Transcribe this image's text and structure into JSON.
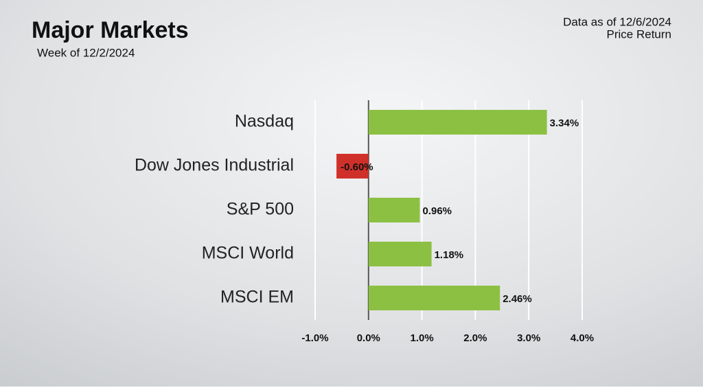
{
  "chart_data": {
    "type": "hbar",
    "title": "Major Markets",
    "subtitle": "Week of 12/2/2024",
    "note": "Data as of 12/6/2024",
    "note2": "Price Return",
    "categories": [
      "Nasdaq",
      "Dow Jones Industrial",
      "S&P 500",
      "MSCI World",
      "MSCI EM"
    ],
    "values": [
      3.34,
      -0.6,
      0.96,
      1.18,
      2.46
    ],
    "value_labels": [
      "3.34%",
      "-0.60%",
      "0.96%",
      "1.18%",
      "2.46%"
    ],
    "positive_color": "#8cc043",
    "negative_color": "#d0302a",
    "xlim": [
      -1,
      4
    ],
    "xticks": [
      {
        "value": -1,
        "label": "-1.0%"
      },
      {
        "value": 0,
        "label": "0.0%"
      },
      {
        "value": 1,
        "label": "1.0%"
      },
      {
        "value": 2,
        "label": "2.0%"
      },
      {
        "value": 3,
        "label": "3.0%"
      },
      {
        "value": 4,
        "label": "4.0%"
      }
    ],
    "grid": true
  }
}
